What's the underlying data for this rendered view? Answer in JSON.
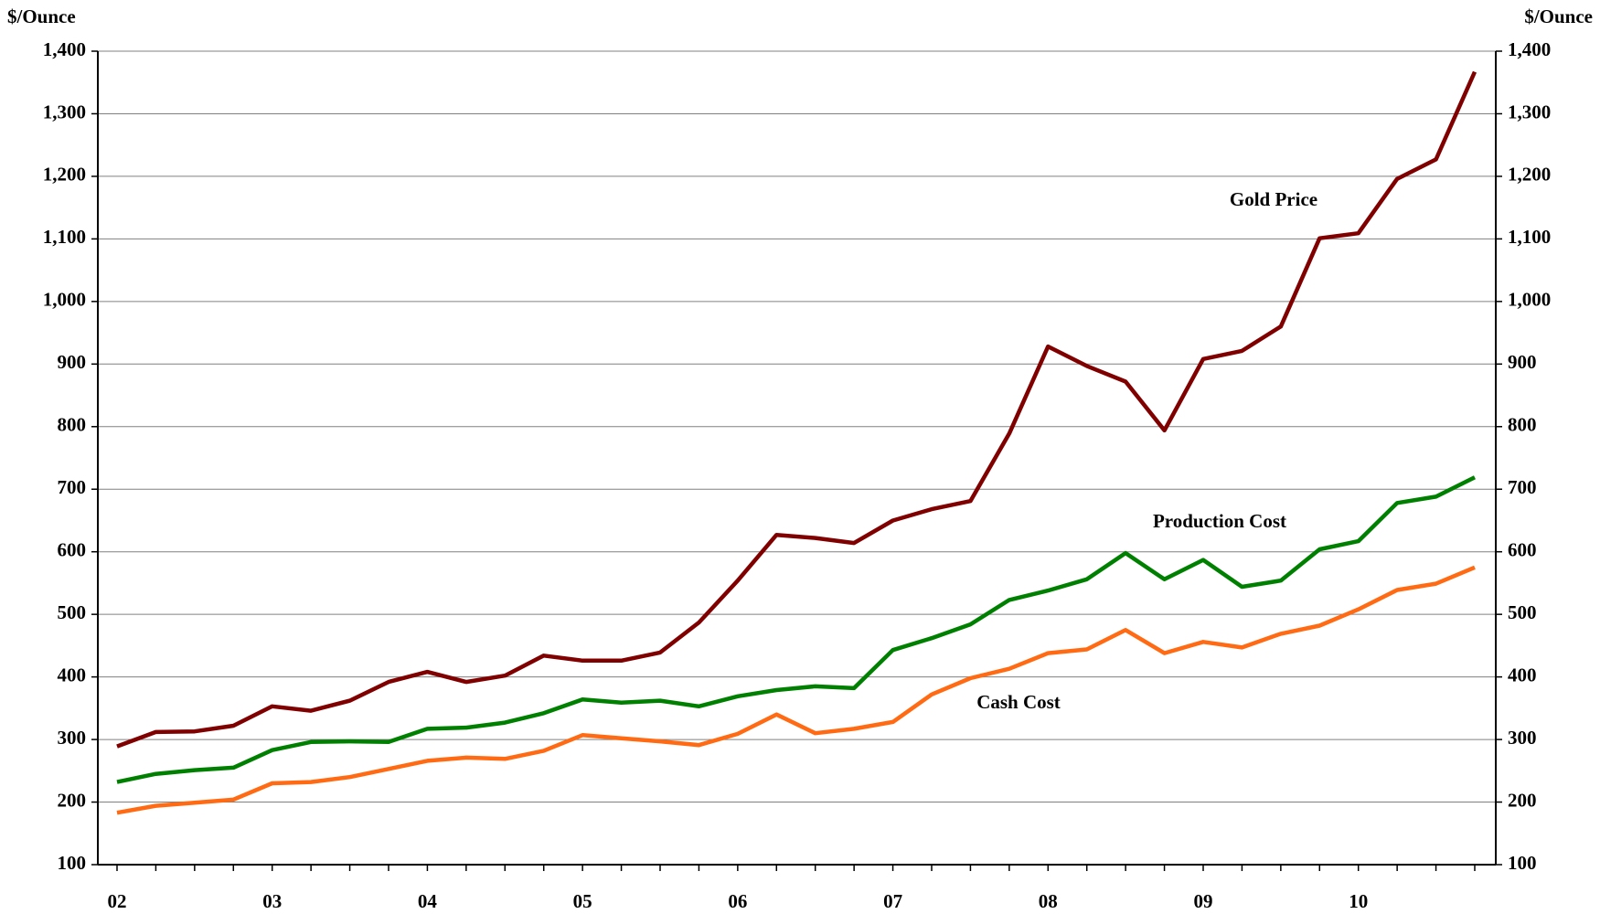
{
  "chart_data": {
    "type": "line",
    "y_label": "$/Ounce",
    "y2_label": "$/Ounce",
    "categories": [
      "02",
      null,
      null,
      null,
      "03",
      null,
      null,
      null,
      "04",
      null,
      null,
      null,
      "05",
      null,
      null,
      null,
      "06",
      null,
      null,
      null,
      "07",
      null,
      null,
      null,
      "08",
      null,
      null,
      null,
      "09",
      null,
      null,
      null,
      "10",
      null,
      null,
      null
    ],
    "series": [
      {
        "name": "Gold Price",
        "color": "#800000",
        "values": [
          289,
          312,
          313,
          322,
          353,
          346,
          362,
          392,
          408,
          392,
          402,
          434,
          426,
          426,
          439,
          487,
          554,
          627,
          622,
          614,
          650,
          668,
          681,
          789,
          928,
          897,
          872,
          794,
          908,
          921,
          960,
          1101,
          1109,
          1196,
          1227,
          1367
        ]
      },
      {
        "name": "Production Cost",
        "color": "#008000",
        "values": [
          232,
          245,
          251,
          255,
          283,
          296,
          297,
          296,
          317,
          319,
          327,
          342,
          364,
          359,
          362,
          353,
          369,
          379,
          385,
          382,
          443,
          462,
          484,
          523,
          538,
          556,
          598,
          556,
          587,
          544,
          554,
          604,
          617,
          678,
          688,
          719
        ]
      },
      {
        "name": "Cash Cost",
        "color": "#ff6a13",
        "values": [
          183,
          194,
          199,
          204,
          230,
          232,
          240,
          253,
          266,
          271,
          269,
          282,
          307,
          302,
          297,
          291,
          309,
          340,
          310,
          317,
          328,
          372,
          398,
          413,
          438,
          444,
          475,
          438,
          456,
          447,
          469,
          482,
          508,
          539,
          549,
          575
        ]
      }
    ],
    "ylim": [
      100,
      1400
    ],
    "yticks": [
      100,
      200,
      300,
      400,
      500,
      600,
      700,
      800,
      900,
      {
        "value": 1000,
        "label": "1,000"
      },
      {
        "value": 1100,
        "label": "1,100"
      },
      {
        "value": 1200,
        "label": "1,200"
      },
      {
        "value": 1300,
        "label": "1,300"
      },
      {
        "value": 1400,
        "label": "1,400"
      }
    ],
    "y2lim": [
      100,
      1400
    ],
    "y2ticks": [
      100,
      200,
      300,
      400,
      500,
      600,
      700,
      800,
      900,
      {
        "value": 1000,
        "label": "1,000"
      },
      {
        "value": 1100,
        "label": "1,100"
      },
      {
        "value": 1200,
        "label": "1,200"
      },
      {
        "value": 1300,
        "label": "1,300"
      },
      {
        "value": 1400,
        "label": "1,400"
      }
    ],
    "grid": true
  }
}
